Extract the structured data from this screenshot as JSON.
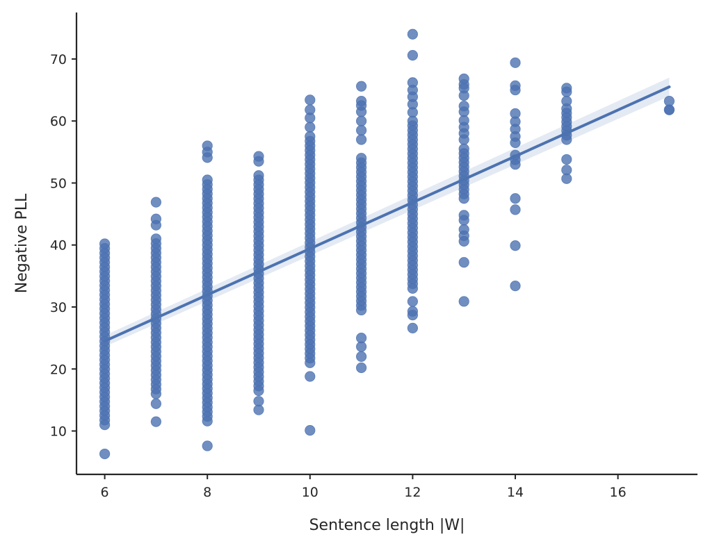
{
  "chart_data": {
    "type": "scatter",
    "title": "",
    "xlabel": "Sentence length |W|",
    "ylabel": "Negative PLL",
    "xlim": [
      5.45,
      17.55
    ],
    "ylim": [
      3,
      77.5
    ],
    "xticks": [
      6,
      8,
      10,
      12,
      14,
      16
    ],
    "yticks": [
      10,
      20,
      30,
      40,
      50,
      60,
      70
    ],
    "grid": false,
    "legend": "none",
    "colors": {
      "points": "#4c72b0",
      "line": "#4c72b0",
      "axis": "#262626"
    },
    "columns": [
      {
        "x": 6,
        "y_min": 11.0,
        "y_max": 40.2,
        "extra": [
          6.3
        ]
      },
      {
        "x": 7,
        "y_min": 16.0,
        "y_max": 41.0,
        "extra": [
          11.5,
          14.4,
          43.2,
          44.2,
          46.9
        ]
      },
      {
        "x": 8,
        "y_min": 11.6,
        "y_max": 50.5,
        "extra": [
          7.6,
          54.1,
          55.0,
          56.0
        ]
      },
      {
        "x": 9,
        "y_min": 16.5,
        "y_max": 50.5,
        "extra": [
          13.4,
          14.8,
          51.2,
          53.5,
          54.3
        ]
      },
      {
        "x": 10,
        "y_min": 21.0,
        "y_max": 57.5,
        "extra": [
          10.1,
          18.8,
          59.0,
          60.5,
          61.8,
          63.4
        ]
      },
      {
        "x": 11,
        "y_min": 29.5,
        "y_max": 54.0,
        "extra": [
          20.2,
          22.0,
          23.6,
          25.0,
          57.0,
          58.5,
          60.0,
          61.5,
          62.5,
          63.2,
          65.6
        ]
      },
      {
        "x": 12,
        "y_min": 33.0,
        "y_max": 60.0,
        "extra": [
          26.6,
          28.7,
          29.3,
          30.9,
          61.4,
          62.7,
          63.9,
          65.0,
          66.2,
          70.6,
          74.0
        ]
      },
      {
        "x": 13,
        "y_min": 47.5,
        "y_max": 55.5,
        "extra": [
          30.9,
          37.2,
          40.6,
          41.5,
          42.5,
          44.0,
          44.8,
          57.0,
          58.0,
          59.0,
          60.1,
          61.5,
          62.4,
          64.1,
          65.3,
          65.9,
          66.8
        ]
      },
      {
        "x": 14,
        "y_min": 53.0,
        "y_max": 54.5,
        "extra": [
          33.4,
          39.9,
          45.7,
          47.5,
          56.5,
          57.5,
          58.7,
          59.9,
          61.2,
          65.0,
          65.7,
          69.4
        ]
      },
      {
        "x": 15,
        "y_min": 57.0,
        "y_max": 62.0,
        "extra": [
          50.7,
          52.1,
          53.8,
          63.2,
          64.7,
          65.3
        ]
      },
      {
        "x": 17,
        "y_min": 61.8,
        "y_max": 61.8,
        "extra": [
          63.2
        ]
      }
    ],
    "regression": {
      "x": [
        6,
        17
      ],
      "y": [
        24.5,
        65.5
      ],
      "ci_half_width_start": 0.9,
      "ci_half_width_end": 1.5
    }
  }
}
